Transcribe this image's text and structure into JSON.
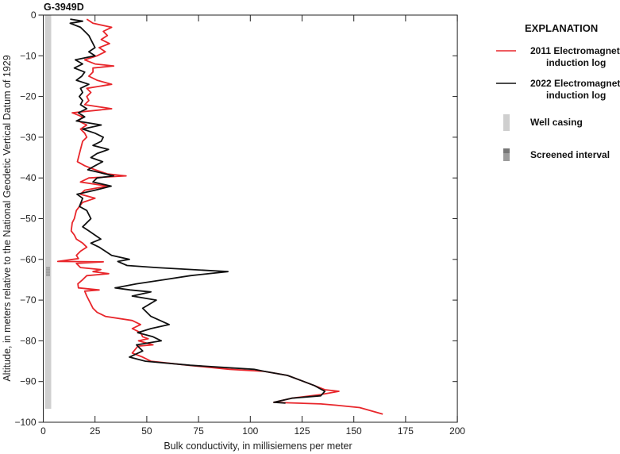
{
  "chart_data": {
    "type": "line",
    "title": "G-3949D",
    "xlabel": "Bulk conductivity, in millisiemens per meter",
    "ylabel": "Altitude, in meters relative to the National Geodetic Vertical Datum of 1929",
    "xlim": [
      0,
      200
    ],
    "ylim": [
      -100,
      0
    ],
    "xticks": [
      0,
      25,
      50,
      75,
      100,
      125,
      150,
      175,
      200
    ],
    "yticks": [
      0,
      -10,
      -20,
      -30,
      -40,
      -50,
      -60,
      -70,
      -80,
      -90,
      -100
    ],
    "ytick_labels": [
      "0",
      "−10",
      "−20",
      "−30",
      "−40",
      "−50",
      "−60",
      "−70",
      "−80",
      "−90",
      "−100"
    ],
    "grid": false,
    "legend_placement": "right",
    "legend_title": "EXPLANATION",
    "legend": [
      {
        "label": "2011 Electromagnetic induction log",
        "color": "#e8262b",
        "kind": "line"
      },
      {
        "label": "2022 Electromagnetic induction log",
        "color": "#111111",
        "kind": "line"
      },
      {
        "label": "Well casing",
        "color": "#cfcfcf",
        "kind": "bar"
      },
      {
        "label": "Screened interval",
        "color": "#777777",
        "kind": "hatch"
      }
    ],
    "well_casing": {
      "top": 0,
      "bottom": -96.7
    },
    "screened_interval": {
      "top": -62,
      "bottom": -64
    },
    "series": [
      {
        "name": "2011 Electromagnetic induction log",
        "color": "#e8262b",
        "points": [
          [
            21,
            -1
          ],
          [
            24,
            -2
          ],
          [
            33,
            -3
          ],
          [
            29,
            -4
          ],
          [
            31,
            -5
          ],
          [
            28,
            -6
          ],
          [
            32,
            -7
          ],
          [
            27,
            -8
          ],
          [
            30,
            -9
          ],
          [
            26,
            -10
          ],
          [
            20,
            -11
          ],
          [
            25,
            -12
          ],
          [
            34,
            -12.5
          ],
          [
            24,
            -13
          ],
          [
            24,
            -14
          ],
          [
            22,
            -15
          ],
          [
            26,
            -16
          ],
          [
            33,
            -17
          ],
          [
            21,
            -18
          ],
          [
            23,
            -19
          ],
          [
            21,
            -20
          ],
          [
            22,
            -21
          ],
          [
            20,
            -22
          ],
          [
            33,
            -23
          ],
          [
            14,
            -24
          ],
          [
            19,
            -25
          ],
          [
            17,
            -26
          ],
          [
            21,
            -27
          ],
          [
            18,
            -28
          ],
          [
            20,
            -29
          ],
          [
            21,
            -30
          ],
          [
            19,
            -31
          ],
          [
            18,
            -33
          ],
          [
            17,
            -35
          ],
          [
            16.5,
            -36
          ],
          [
            20,
            -37
          ],
          [
            25,
            -38
          ],
          [
            31,
            -39
          ],
          [
            40,
            -39.5
          ],
          [
            22,
            -40
          ],
          [
            18,
            -41
          ],
          [
            31,
            -42
          ],
          [
            20,
            -43
          ],
          [
            18,
            -44
          ],
          [
            25,
            -45
          ],
          [
            19,
            -46
          ],
          [
            17.5,
            -47
          ],
          [
            16,
            -48
          ],
          [
            15,
            -50
          ],
          [
            14,
            -51
          ],
          [
            13.5,
            -53
          ],
          [
            15,
            -54
          ],
          [
            16,
            -55
          ],
          [
            19,
            -56
          ],
          [
            21,
            -57
          ],
          [
            18,
            -58
          ],
          [
            16,
            -59
          ],
          [
            17,
            -59.8
          ],
          [
            7,
            -60.5
          ],
          [
            29,
            -60.6
          ],
          [
            16,
            -61
          ],
          [
            18,
            -62
          ],
          [
            27.8,
            -62.5
          ],
          [
            24,
            -63
          ],
          [
            31.6,
            -63.5
          ],
          [
            21,
            -64
          ],
          [
            19,
            -65
          ],
          [
            16.7,
            -66
          ],
          [
            17,
            -67
          ],
          [
            27,
            -67.5
          ],
          [
            20,
            -67.8
          ],
          [
            21,
            -69
          ],
          [
            22,
            -70
          ],
          [
            23,
            -71
          ],
          [
            24,
            -72
          ],
          [
            26,
            -73
          ],
          [
            30,
            -74
          ],
          [
            43,
            -75
          ],
          [
            47,
            -76
          ],
          [
            43,
            -77
          ],
          [
            47,
            -78
          ],
          [
            48,
            -79
          ],
          [
            50.7,
            -79.5
          ],
          [
            46,
            -80
          ],
          [
            53,
            -81
          ],
          [
            45.7,
            -81.3
          ],
          [
            43,
            -83
          ],
          [
            48,
            -84
          ],
          [
            52,
            -85
          ],
          [
            70,
            -86
          ],
          [
            90,
            -87
          ],
          [
            106.8,
            -87.5
          ],
          [
            118,
            -88.5
          ],
          [
            124.8,
            -89.8
          ],
          [
            131,
            -91
          ],
          [
            136,
            -92
          ],
          [
            142.8,
            -92.4
          ],
          [
            134,
            -93.2
          ],
          [
            120,
            -94.1
          ],
          [
            111.4,
            -95.1
          ],
          [
            134,
            -95.5
          ],
          [
            141.3,
            -95.8
          ],
          [
            152.8,
            -96.4
          ],
          [
            164,
            -98
          ]
        ]
      },
      {
        "name": "2022 Electromagnetic induction log",
        "color": "#111111",
        "points": [
          [
            13,
            -1
          ],
          [
            19,
            -1.5
          ],
          [
            13,
            -2
          ],
          [
            18,
            -3
          ],
          [
            20,
            -4
          ],
          [
            22,
            -5
          ],
          [
            23,
            -6
          ],
          [
            24,
            -7
          ],
          [
            25,
            -8
          ],
          [
            22,
            -9
          ],
          [
            25,
            -10
          ],
          [
            15.5,
            -11
          ],
          [
            19,
            -12
          ],
          [
            15,
            -13
          ],
          [
            20,
            -14
          ],
          [
            18.6,
            -15
          ],
          [
            16,
            -16
          ],
          [
            22,
            -17
          ],
          [
            18,
            -18
          ],
          [
            19,
            -19
          ],
          [
            17.4,
            -20
          ],
          [
            19,
            -21
          ],
          [
            18,
            -22
          ],
          [
            21,
            -23
          ],
          [
            17,
            -24
          ],
          [
            20,
            -25
          ],
          [
            16,
            -26
          ],
          [
            28,
            -27
          ],
          [
            19,
            -28
          ],
          [
            25,
            -29
          ],
          [
            29,
            -30
          ],
          [
            28,
            -31
          ],
          [
            24,
            -32
          ],
          [
            31.5,
            -33
          ],
          [
            26,
            -34
          ],
          [
            23,
            -35
          ],
          [
            28.7,
            -36
          ],
          [
            25,
            -37
          ],
          [
            21.5,
            -38
          ],
          [
            34,
            -39.5
          ],
          [
            26,
            -40
          ],
          [
            24,
            -41
          ],
          [
            32.8,
            -42
          ],
          [
            25,
            -43
          ],
          [
            16.3,
            -44
          ],
          [
            19,
            -45
          ],
          [
            17.5,
            -47
          ],
          [
            21,
            -48
          ],
          [
            23,
            -50
          ],
          [
            19,
            -52
          ],
          [
            22,
            -53
          ],
          [
            27.8,
            -55
          ],
          [
            23,
            -56
          ],
          [
            27,
            -57
          ],
          [
            30,
            -58
          ],
          [
            33,
            -59
          ],
          [
            41.6,
            -60
          ],
          [
            36,
            -60.5
          ],
          [
            40.5,
            -61.5
          ],
          [
            54.6,
            -62
          ],
          [
            89.2,
            -63
          ],
          [
            71,
            -64
          ],
          [
            58.4,
            -65
          ],
          [
            45,
            -66
          ],
          [
            34.7,
            -67
          ],
          [
            42,
            -67.5
          ],
          [
            52,
            -68
          ],
          [
            43,
            -69
          ],
          [
            54.6,
            -70
          ],
          [
            48,
            -72
          ],
          [
            52,
            -74
          ],
          [
            60.8,
            -76
          ],
          [
            52,
            -77
          ],
          [
            45.6,
            -78
          ],
          [
            53,
            -79
          ],
          [
            57,
            -80
          ],
          [
            45,
            -81
          ],
          [
            48,
            -82.5
          ],
          [
            41.6,
            -84
          ],
          [
            49.4,
            -85
          ],
          [
            71,
            -86
          ],
          [
            101.8,
            -87
          ],
          [
            106.8,
            -87.5
          ],
          [
            118,
            -88.5
          ],
          [
            124.8,
            -89.8
          ],
          [
            131,
            -91
          ],
          [
            136,
            -92.4
          ],
          [
            134,
            -93.5
          ],
          [
            120,
            -94.1
          ],
          [
            111.4,
            -95.1
          ],
          [
            117,
            -95.3
          ]
        ]
      }
    ]
  }
}
